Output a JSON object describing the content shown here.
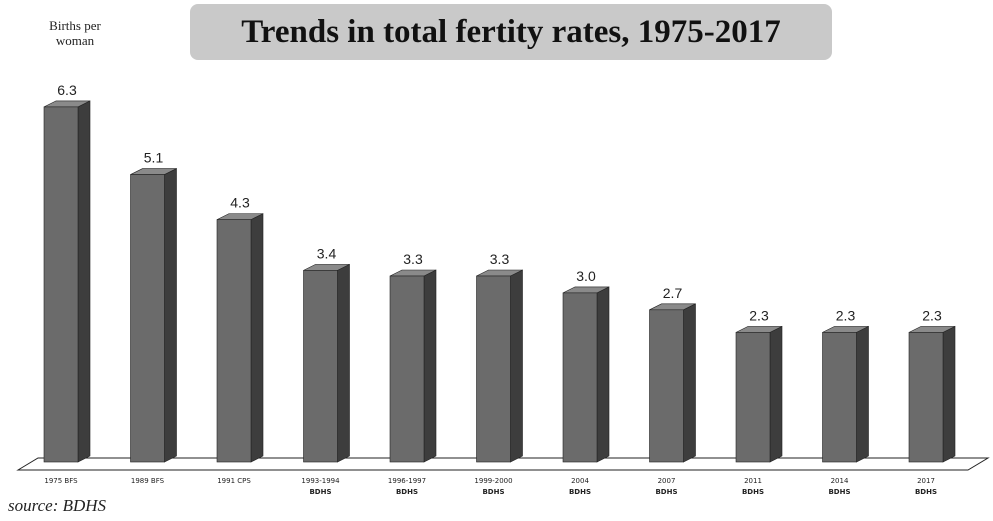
{
  "chart_data": {
    "type": "bar",
    "title": "Trends in total fertity rates, 1975-2017",
    "ylabel_lines": [
      "Births per",
      "woman"
    ],
    "xlabel": "",
    "source": "source: BDHS",
    "ylim": [
      0,
      6.6
    ],
    "categories": [
      [
        "1975 BFS"
      ],
      [
        "1989 BFS"
      ],
      [
        "1991 CPS"
      ],
      [
        "1993-1994",
        "BDHS"
      ],
      [
        "1996-1997",
        "BDHS"
      ],
      [
        "1999-2000",
        "BDHS"
      ],
      [
        "2004",
        "BDHS"
      ],
      [
        "2007",
        "BDHS"
      ],
      [
        "2011",
        "BDHS"
      ],
      [
        "2014",
        "BDHS"
      ],
      [
        "2017",
        "BDHS"
      ]
    ],
    "values": [
      6.3,
      5.1,
      4.3,
      3.4,
      3.3,
      3.3,
      3.0,
      2.7,
      2.3,
      2.3,
      2.3
    ],
    "value_labels": [
      "6.3",
      "5.1",
      "4.3",
      "3.4",
      "3.3",
      "3.3",
      "3.0",
      "2.7",
      "2.3",
      "2.3",
      "2.3"
    ],
    "colors": {
      "bar_front": "#6b6b6b",
      "bar_side": "#3d3d3d",
      "bar_top": "#8a8a8a",
      "title_bg": "#c9c9c9"
    }
  }
}
